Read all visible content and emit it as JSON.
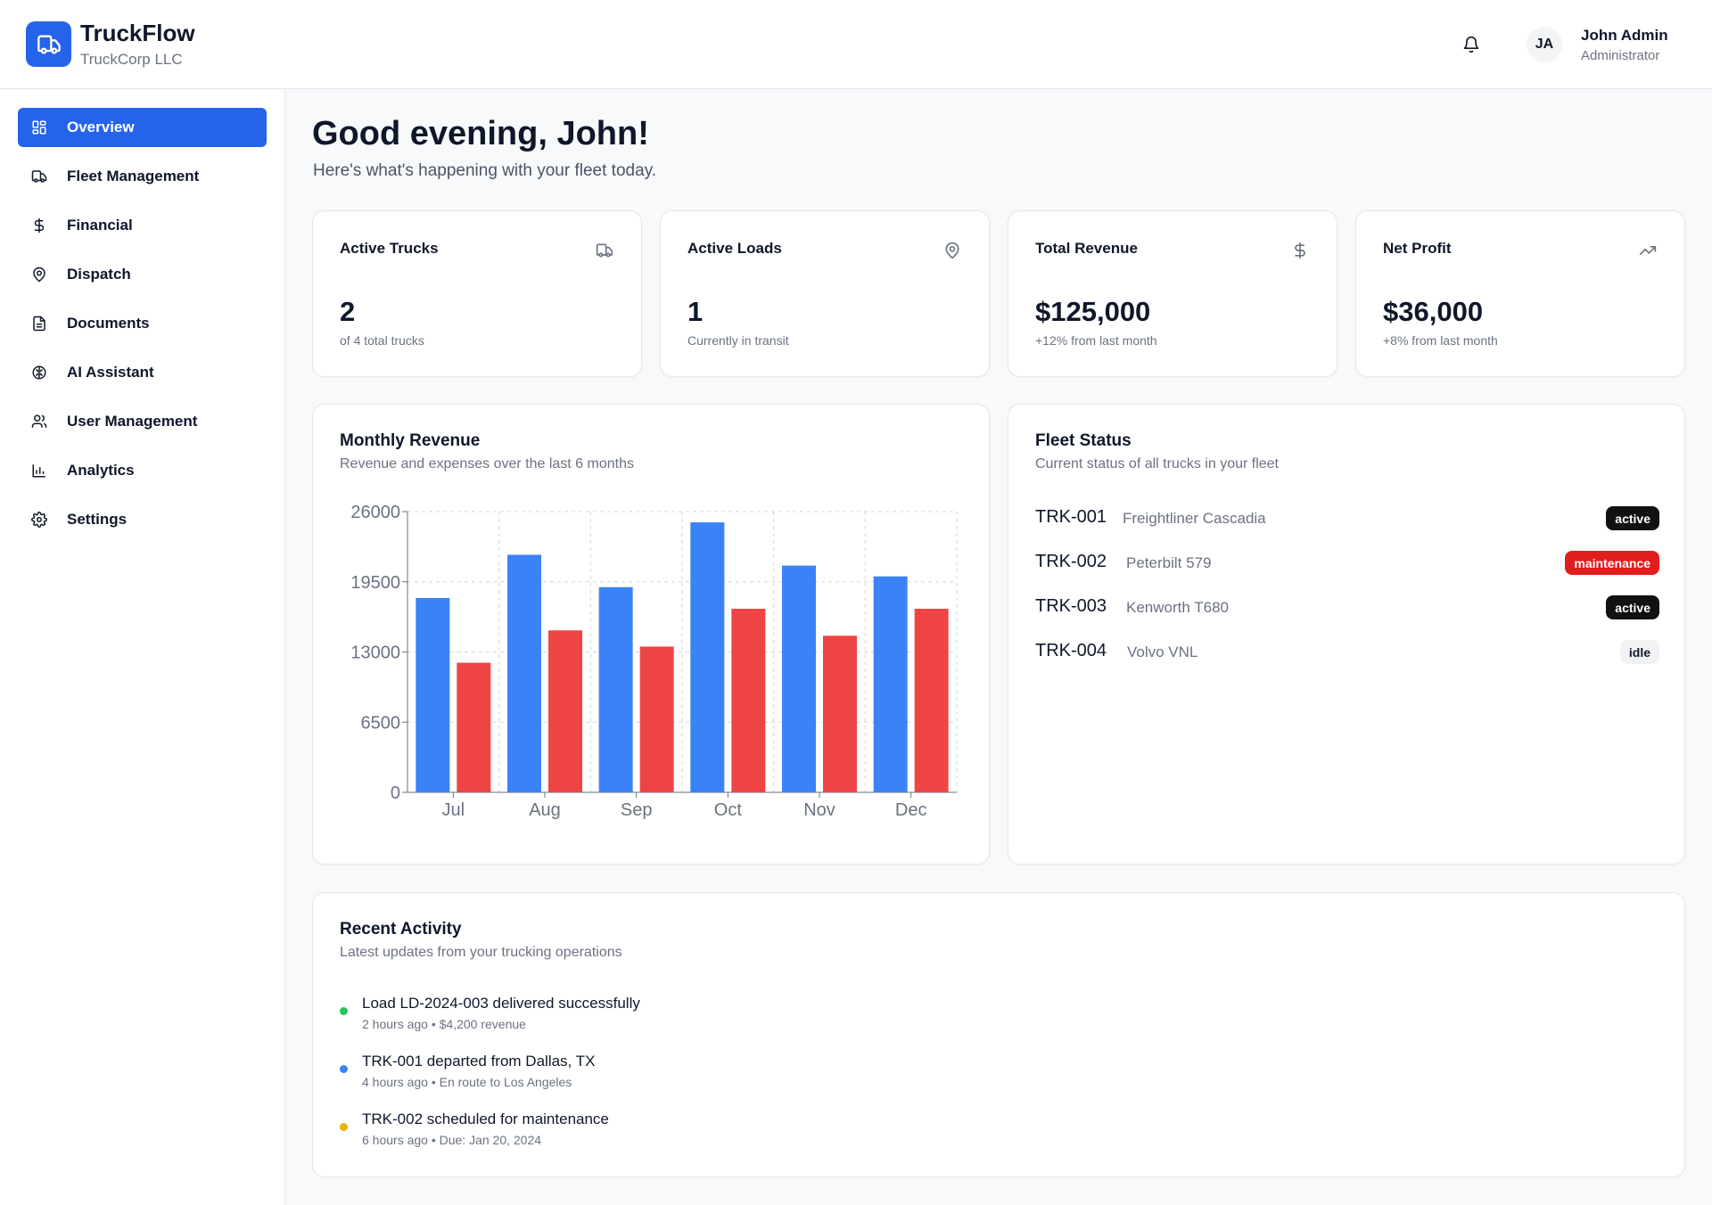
{
  "app": {
    "name": "TruckFlow",
    "company": "TruckCorp LLC",
    "logo_icon": "truck-icon",
    "accent": "#2563eb"
  },
  "header": {
    "notification_icon": "bell-icon",
    "user": {
      "initials": "JA",
      "name": "John Admin",
      "role": "Administrator"
    }
  },
  "sidebar": {
    "items": [
      {
        "label": "Overview",
        "icon": "grid-icon",
        "active": true
      },
      {
        "label": "Fleet Management",
        "icon": "truck-icon",
        "active": false
      },
      {
        "label": "Financial",
        "icon": "dollar-icon",
        "active": false
      },
      {
        "label": "Dispatch",
        "icon": "map-pin-icon",
        "active": false
      },
      {
        "label": "Documents",
        "icon": "file-icon",
        "active": false
      },
      {
        "label": "AI Assistant",
        "icon": "brain-icon",
        "active": false
      },
      {
        "label": "User Management",
        "icon": "users-icon",
        "active": false
      },
      {
        "label": "Analytics",
        "icon": "bar-chart-icon",
        "active": false
      },
      {
        "label": "Settings",
        "icon": "gear-icon",
        "active": false
      }
    ]
  },
  "main": {
    "greeting": "Good evening, John!",
    "subtitle": "Here's what's happening with your fleet today.",
    "stats": [
      {
        "title": "Active Trucks",
        "value": "2",
        "note": "of 4 total trucks",
        "icon": "truck-icon"
      },
      {
        "title": "Active Loads",
        "value": "1",
        "note": "Currently in transit",
        "icon": "map-pin-icon"
      },
      {
        "title": "Total Revenue",
        "value": "$125,000",
        "note": "+12% from last month",
        "icon": "dollar-icon"
      },
      {
        "title": "Net Profit",
        "value": "$36,000",
        "note": "+8% from last month",
        "icon": "trending-up-icon"
      }
    ],
    "revenue_card": {
      "title": "Monthly Revenue",
      "subtitle": "Revenue and expenses over the last 6 months"
    },
    "fleet_card": {
      "title": "Fleet Status",
      "subtitle": "Current status of all trucks in your fleet",
      "trucks": [
        {
          "id": "TRK-001",
          "model": "Freightliner Cascadia",
          "status": "active"
        },
        {
          "id": "TRK-002",
          "model": "Peterbilt 579",
          "status": "maintenance"
        },
        {
          "id": "TRK-003",
          "model": "Kenworth T680",
          "status": "active"
        },
        {
          "id": "TRK-004",
          "model": "Volvo VNL",
          "status": "idle"
        }
      ]
    },
    "activity_card": {
      "title": "Recent Activity",
      "subtitle": "Latest updates from your trucking operations",
      "items": [
        {
          "title": "Load LD-2024-003 delivered successfully",
          "detail": "2 hours ago • $4,200 revenue",
          "color": "#22c55e"
        },
        {
          "title": "TRK-001 departed from Dallas, TX",
          "detail": "4 hours ago • En route to Los Angeles",
          "color": "#3b82f6"
        },
        {
          "title": "TRK-002 scheduled for maintenance",
          "detail": "6 hours ago • Due: Jan 20, 2024",
          "color": "#eab308"
        }
      ]
    }
  },
  "chart_data": {
    "type": "bar",
    "categories": [
      "Jul",
      "Aug",
      "Sep",
      "Oct",
      "Nov",
      "Dec"
    ],
    "series": [
      {
        "values": [
          18000,
          22000,
          19000,
          25000,
          21000,
          20000
        ],
        "color": "#3b82f6"
      },
      {
        "values": [
          12000,
          15000,
          13500,
          17000,
          14500,
          17000
        ],
        "color": "#ef4444"
      }
    ],
    "yticks": [
      0,
      6500,
      13000,
      19500,
      26000
    ],
    "ylim": [
      0,
      26000
    ],
    "grid": true
  }
}
